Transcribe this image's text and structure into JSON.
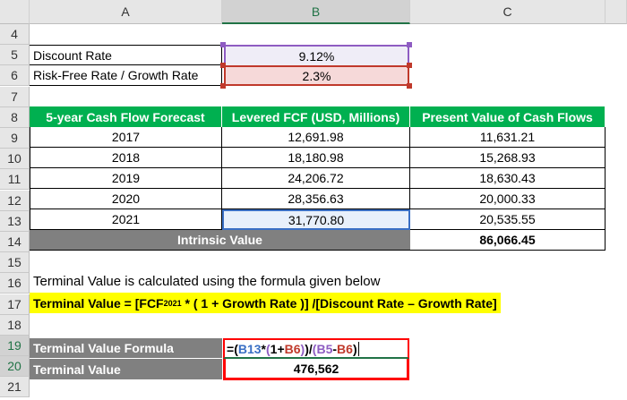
{
  "columns": [
    "A",
    "B",
    "C"
  ],
  "rows": [
    "4",
    "5",
    "6",
    "7",
    "8",
    "9",
    "10",
    "11",
    "12",
    "13",
    "14",
    "15",
    "16",
    "17",
    "18",
    "19",
    "20",
    "21"
  ],
  "inputs": {
    "discount_label": "Discount Rate",
    "discount_value": "9.12%",
    "growth_label": "Risk-Free Rate / Growth Rate",
    "growth_value": "2.3%"
  },
  "table": {
    "headers": [
      "5-year Cash Flow Forecast",
      "Levered FCF (USD, Millions)",
      "Present Value of Cash Flows"
    ],
    "rows": [
      [
        "2017",
        "12,691.98",
        "11,631.21"
      ],
      [
        "2018",
        "18,180.98",
        "15,268.93"
      ],
      [
        "2019",
        "24,206.72",
        "18,630.43"
      ],
      [
        "2020",
        "28,356.63",
        "20,000.33"
      ],
      [
        "2021",
        "31,770.80",
        "20,535.55"
      ]
    ],
    "total_label": "Intrinsic Value",
    "total_value": "86,066.45"
  },
  "note": "Terminal Value is calculated using the formula given below",
  "formula_text": {
    "a": "Terminal Value = [FCF",
    "sub": "2021",
    "b": " * ( 1 + Growth Rate )] /[Discount Rate – Growth Rate]"
  },
  "tv": {
    "formula_label": "Terminal Value Formula",
    "formula_parts": [
      "=",
      "(",
      "B13",
      "*",
      "(",
      "1+",
      "B6",
      ")",
      ")",
      "/",
      "(",
      "B5",
      "-",
      "B6",
      ")"
    ],
    "value_label": "Terminal Value",
    "value": "476,562"
  },
  "colors": {
    "green": "#00b050",
    "gray": "#808080",
    "highlight": "#ffff00",
    "ref_blue": "#3a6fc4",
    "ref_red": "#c0392b",
    "ref_purple": "#8e5cc2",
    "box_red": "#ff0000"
  }
}
